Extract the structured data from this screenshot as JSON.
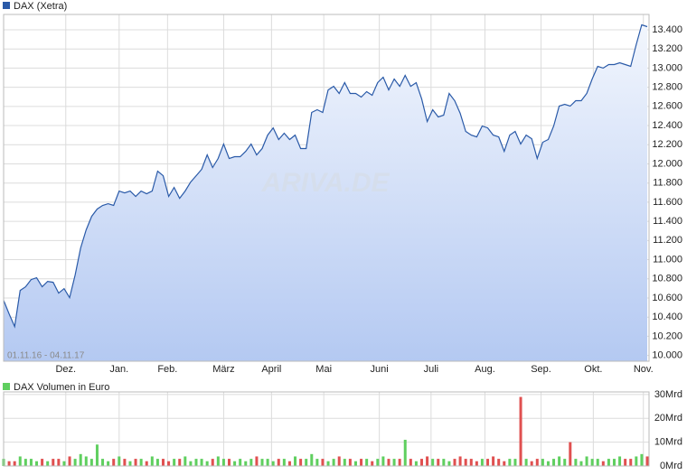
{
  "chart_data": [
    {
      "type": "area",
      "title": "DAX (Xetra)",
      "color": "#2a5aa8",
      "range_label": "01.11.16 - 04.11.17",
      "watermark": "ARIVA.DE",
      "values": [
        10575,
        10434,
        10302,
        10679,
        10717,
        10792,
        10811,
        10717,
        10773,
        10764,
        10651,
        10698,
        10604,
        10839,
        11122,
        11311,
        11452,
        11528,
        11566,
        11584,
        11566,
        11716,
        11697,
        11716,
        11660,
        11716,
        11688,
        11716,
        11924,
        11876,
        11660,
        11754,
        11641,
        11716,
        11810,
        11876,
        11943,
        12094,
        11962,
        12056,
        12207,
        12056,
        12075,
        12075,
        12131,
        12207,
        12094,
        12160,
        12301,
        12376,
        12254,
        12320,
        12254,
        12301,
        12160,
        12160,
        12537,
        12565,
        12537,
        12772,
        12810,
        12735,
        12848,
        12735,
        12735,
        12697,
        12754,
        12716,
        12848,
        12905,
        12772,
        12886,
        12810,
        12924,
        12810,
        12848,
        12678,
        12442,
        12565,
        12490,
        12509,
        12735,
        12660,
        12528,
        12339,
        12301,
        12282,
        12395,
        12376,
        12301,
        12282,
        12131,
        12301,
        12339,
        12207,
        12301,
        12263,
        12056,
        12226,
        12254,
        12395,
        12603,
        12622,
        12603,
        12660,
        12660,
        12735,
        12886,
        13018,
        13000,
        13037,
        13037,
        13056,
        13037,
        13018,
        13244,
        13452,
        13433
      ],
      "xlim": [
        0,
        117
      ],
      "xticks": [
        {
          "value": 11.3,
          "label": "Dez."
        },
        {
          "value": 21,
          "label": "Jan."
        },
        {
          "value": 29.8,
          "label": "Feb."
        },
        {
          "value": 40,
          "label": "März"
        },
        {
          "value": 48.7,
          "label": "April"
        },
        {
          "value": 58.2,
          "label": "Mai"
        },
        {
          "value": 68.3,
          "label": "Juni"
        },
        {
          "value": 77.7,
          "label": "Juli"
        },
        {
          "value": 87.5,
          "label": "Aug."
        },
        {
          "value": 97.7,
          "label": "Sep."
        },
        {
          "value": 107.2,
          "label": "Okt."
        },
        {
          "value": 116.3,
          "label": "Nov."
        }
      ],
      "ylim": [
        9940,
        13560
      ],
      "yticks": [
        {
          "value": 10000,
          "label": "10.000"
        },
        {
          "value": 10200,
          "label": "10.200"
        },
        {
          "value": 10400,
          "label": "10.400"
        },
        {
          "value": 10600,
          "label": "10.600"
        },
        {
          "value": 10800,
          "label": "10.800"
        },
        {
          "value": 11000,
          "label": "11.000"
        },
        {
          "value": 11200,
          "label": "11.200"
        },
        {
          "value": 11400,
          "label": "11.400"
        },
        {
          "value": 11600,
          "label": "11.600"
        },
        {
          "value": 11800,
          "label": "11.800"
        },
        {
          "value": 12000,
          "label": "12.000"
        },
        {
          "value": 12200,
          "label": "12.200"
        },
        {
          "value": 12400,
          "label": "12.400"
        },
        {
          "value": 12600,
          "label": "12.600"
        },
        {
          "value": 12800,
          "label": "12.800"
        },
        {
          "value": 13000,
          "label": "13.000"
        },
        {
          "value": 13200,
          "label": "13.200"
        },
        {
          "value": 13400,
          "label": "13.400"
        }
      ],
      "grid": true
    },
    {
      "type": "bar",
      "title": "DAX Volumen in Euro",
      "color": "#5fcf5f",
      "down_color": "#e05050",
      "values": [
        3,
        2,
        2,
        4,
        3,
        3,
        2,
        3,
        2,
        3,
        3,
        2,
        4,
        3,
        5,
        4,
        3,
        9,
        3,
        2,
        3,
        4,
        3,
        2,
        3,
        3,
        2,
        4,
        3,
        3,
        2,
        3,
        3,
        4,
        2,
        3,
        3,
        2,
        3,
        4,
        3,
        3,
        2,
        3,
        2,
        3,
        4,
        3,
        3,
        2,
        3,
        3,
        2,
        4,
        3,
        3,
        5,
        3,
        3,
        2,
        3,
        4,
        3,
        3,
        2,
        3,
        3,
        2,
        3,
        4,
        3,
        3,
        3,
        11,
        3,
        2,
        3,
        4,
        3,
        3,
        3,
        2,
        3,
        4,
        3,
        3,
        2,
        3,
        3,
        4,
        3,
        2,
        3,
        3,
        29,
        3,
        2,
        3,
        3,
        2,
        3,
        4,
        3,
        10,
        3,
        2,
        4,
        3,
        3,
        2,
        3,
        3,
        4,
        3,
        3,
        4,
        5,
        4
      ],
      "ylim": [
        0,
        31.1
      ],
      "yticks": [
        {
          "value": 0,
          "label": "0Mrd"
        },
        {
          "value": 10,
          "label": "10Mrd"
        },
        {
          "value": 20,
          "label": "20Mrd"
        },
        {
          "value": 30,
          "label": "30Mrd"
        }
      ],
      "grid": true
    }
  ]
}
